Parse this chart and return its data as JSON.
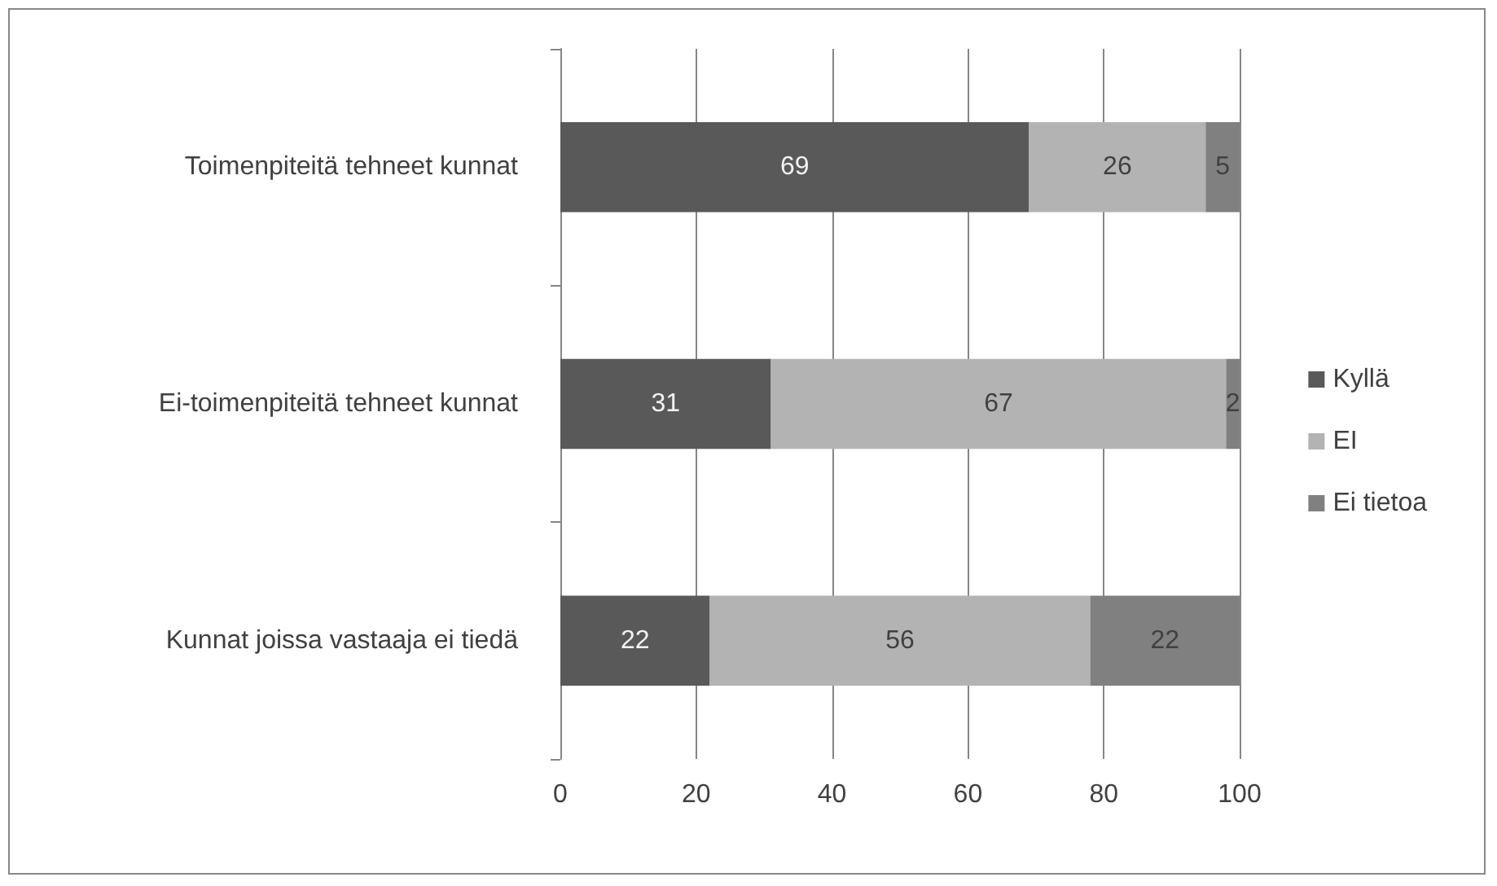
{
  "chart_data": {
    "type": "bar",
    "orientation": "horizontal",
    "stacked": true,
    "categories": [
      "Toimenpiteitä tehneet kunnat",
      "Ei-toimenpiteitä tehneet kunnat",
      "Kunnat joissa vastaaja ei tiedä"
    ],
    "series": [
      {
        "name": "Kyllä",
        "color": "#595959",
        "values": [
          69,
          31,
          22
        ]
      },
      {
        "name": "EI",
        "color": "#b3b3b3",
        "values": [
          26,
          67,
          56
        ]
      },
      {
        "name": "Ei tietoa",
        "color": "#808080",
        "values": [
          5,
          2,
          22
        ]
      }
    ],
    "xlim": [
      0,
      100
    ],
    "xticks": [
      0,
      20,
      40,
      60,
      80,
      100
    ],
    "grid": "x",
    "legend": "right",
    "data_labels": true
  }
}
